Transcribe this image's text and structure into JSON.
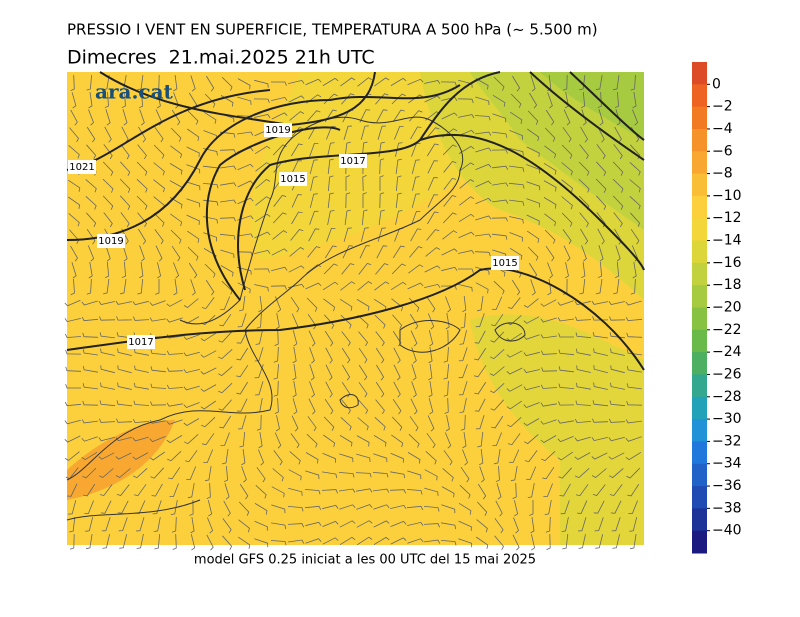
{
  "header": {
    "title": "PRESSIO I VENT EN SUPERFICIE, TEMPERATURA A 500 hPa (~ 5.500 m)",
    "date": "Dimecres  21.mai.2025 21h UTC"
  },
  "logo": "ara.cat",
  "isobar_labels": [
    "1019",
    "1021",
    "1015",
    "1017",
    "1019",
    "1017",
    "1015"
  ],
  "footer": "model GFS 0.25 iniciat a les 00 UTC del 15 mai 2025",
  "colorbar": {
    "lim": [
      2,
      -42
    ],
    "colors": [
      "#dc4a26",
      "#ee6222",
      "#f27a22",
      "#f5922a",
      "#f8a830",
      "#fabe36",
      "#fbd03c",
      "#f2d63a",
      "#dcd63a",
      "#c2d23e",
      "#a6ca40",
      "#88c242",
      "#6aba4a",
      "#4caf62",
      "#34a88e",
      "#22a2b8",
      "#2092d8",
      "#2078dc",
      "#2062c8",
      "#1e4cb2",
      "#1c3498",
      "#1a1a80"
    ],
    "ticks": [
      {
        "value": 0,
        "label": "0"
      },
      {
        "value": -2,
        "label": "−2"
      },
      {
        "value": -4,
        "label": "−4"
      },
      {
        "value": -6,
        "label": "−6"
      },
      {
        "value": -8,
        "label": "−8"
      },
      {
        "value": -10,
        "label": "−10"
      },
      {
        "value": -12,
        "label": "−12"
      },
      {
        "value": -14,
        "label": "−14"
      },
      {
        "value": -16,
        "label": "−16"
      },
      {
        "value": -18,
        "label": "−18"
      },
      {
        "value": -20,
        "label": "−20"
      },
      {
        "value": -22,
        "label": "−22"
      },
      {
        "value": -24,
        "label": "−24"
      },
      {
        "value": -26,
        "label": "−26"
      },
      {
        "value": -28,
        "label": "−28"
      },
      {
        "value": -30,
        "label": "−30"
      },
      {
        "value": -32,
        "label": "−32"
      },
      {
        "value": -34,
        "label": "−34"
      },
      {
        "value": -36,
        "label": "−36"
      },
      {
        "value": -38,
        "label": "−38"
      },
      {
        "value": -40,
        "label": "−40"
      }
    ]
  }
}
